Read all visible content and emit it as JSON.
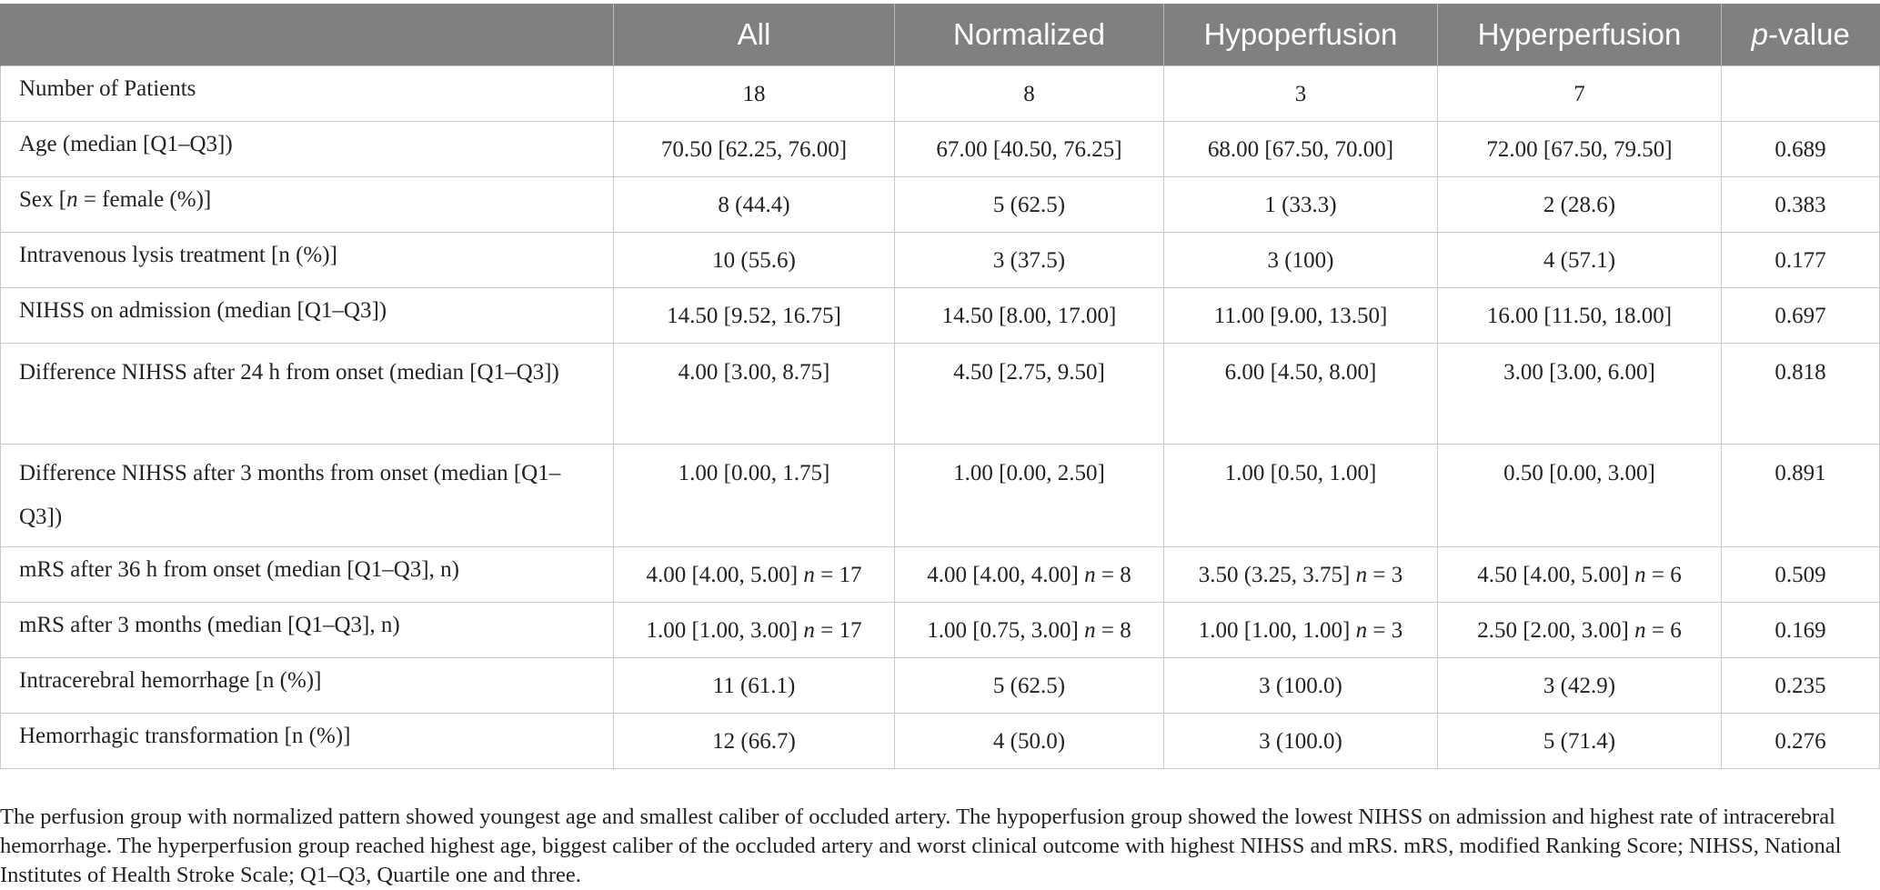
{
  "table": {
    "headers": [
      "",
      "All",
      "Normalized",
      "Hypoperfusion",
      "Hyperperfusion",
      "p-value"
    ],
    "rows": [
      {
        "label": "Number of Patients",
        "values": [
          "18",
          "8",
          "3",
          "7",
          ""
        ]
      },
      {
        "label": "Age (median [Q1–Q3])",
        "values": [
          "70.50 [62.25, 76.00]",
          "67.00 [40.50, 76.25]",
          "68.00 [67.50, 70.00]",
          "72.00 [67.50, 79.50]",
          "0.689"
        ]
      },
      {
        "label_prefix": "Sex [",
        "label_italic": "n",
        "label_suffix": " = female (%)]",
        "values": [
          "8 (44.4)",
          "5 (62.5)",
          "1 (33.3)",
          "2 (28.6)",
          "0.383"
        ]
      },
      {
        "label": "Intravenous lysis treatment [n (%)]",
        "values": [
          "10 (55.6)",
          "3 (37.5)",
          "3 (100)",
          "4 (57.1)",
          "0.177"
        ]
      },
      {
        "label": "NIHSS on admission (median [Q1–Q3])",
        "values": [
          "14.50 [9.52, 16.75]",
          "14.50 [8.00, 17.00]",
          "11.00 [9.00, 13.50]",
          "16.00 [11.50, 18.00]",
          "0.697"
        ]
      },
      {
        "label": "Difference NIHSS after 24 h from onset (median [Q1–Q3])",
        "values": [
          "4.00 [3.00, 8.75]",
          "4.50 [2.75, 9.50]",
          "6.00 [4.50, 8.00]",
          "3.00 [3.00, 6.00]",
          "0.818"
        ]
      },
      {
        "label": "Difference NIHSS after 3 months from onset (median [Q1–Q3])",
        "values": [
          "1.00 [0.00, 1.75]",
          "1.00 [0.00, 2.50]",
          "1.00 [0.50, 1.00]",
          "0.50 [0.00, 3.00]",
          "0.891"
        ]
      },
      {
        "label": "mRS after 36 h from onset (median [Q1–Q3], n)",
        "values": [
          "4.00 [4.00, 5.00]",
          "4.00 [4.00, 4.00]",
          "3.50 (3.25, 3.75]",
          "4.50 [4.00, 5.00]",
          "0.509"
        ],
        "n": [
          "17",
          "8",
          "3",
          "6"
        ]
      },
      {
        "label": "mRS after 3 months (median [Q1–Q3], n)",
        "values": [
          "1.00 [1.00, 3.00]",
          "1.00 [0.75, 3.00]",
          "1.00 [1.00, 1.00]",
          "2.50 [2.00, 3.00]",
          "0.169"
        ],
        "n": [
          "17",
          "8",
          "3",
          "6"
        ]
      },
      {
        "label": "Intracerebral hemorrhage [n (%)]",
        "values": [
          "11 (61.1)",
          "5 (62.5)",
          "3 (100.0)",
          "3 (42.9)",
          "0.235"
        ]
      },
      {
        "label": "Hemorrhagic transformation [n (%)]",
        "values": [
          "12 (66.7)",
          "4 (50.0)",
          "3 (100.0)",
          "5 (71.4)",
          "0.276"
        ]
      }
    ],
    "p_italic": "p",
    "p_suffix": "-value",
    "n_italic": "n",
    "n_eq": " = "
  },
  "caption": "The perfusion group with normalized pattern showed youngest age and smallest caliber of occluded artery. The hypoperfusion group showed the lowest NIHSS on admission and highest rate of intracerebral hemorrhage. The hyperperfusion group reached highest age, biggest caliber of the occluded artery and worst clinical outcome with highest NIHSS and mRS. mRS, modified Ranking Score; NIHSS, National Institutes of Health Stroke Scale; Q1–Q3, Quartile one and three."
}
